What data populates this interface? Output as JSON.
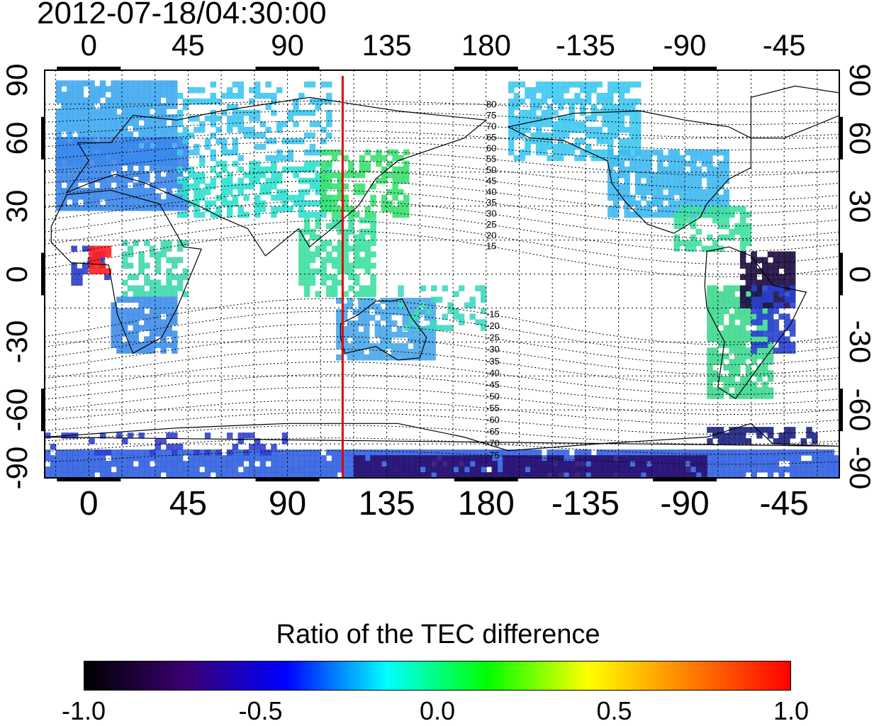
{
  "title": "2012-07-18/04:30:00",
  "axes": {
    "top_ticks": [
      "0",
      "45",
      "90",
      "135",
      "180",
      "-135",
      "-90",
      "-45"
    ],
    "bottom_ticks": [
      "0",
      "45",
      "90",
      "135",
      "180",
      "-135",
      "-90",
      "-45"
    ],
    "left_ticks": [
      "90",
      "60",
      "30",
      "0",
      "-30",
      "-60",
      "-90"
    ],
    "right_ticks": [
      "90",
      "60",
      "30",
      "0",
      "-30",
      "-60",
      "-90"
    ]
  },
  "map": {
    "projection": "equirectangular",
    "longitude_range_display": [
      -20,
      340
    ],
    "latitude_range": [
      -90,
      90
    ],
    "grid": "dotted, 15 degree spacing",
    "meridian_line": {
      "longitude": 115,
      "color": "#e00000"
    },
    "dip_latitude_contours": [
      "80",
      "75",
      "70",
      "65",
      "60",
      "55",
      "50",
      "45",
      "40",
      "35",
      "30",
      "25",
      "20",
      "15",
      "-15",
      "-20",
      "-25",
      "-30",
      "-35",
      "-40",
      "-45",
      "-50",
      "-55",
      "-60",
      "-65",
      "-70",
      "-75"
    ]
  },
  "colorbar": {
    "title": "Ratio of the TEC difference",
    "ticks": [
      "-1.0",
      "-0.5",
      "0.0",
      "0.5",
      "1.0"
    ],
    "colors": [
      "#000000",
      "#3a0070",
      "#0000ff",
      "#00ffff",
      "#00ff00",
      "#ffff00",
      "#ff7f00",
      "#ff0000"
    ]
  }
}
